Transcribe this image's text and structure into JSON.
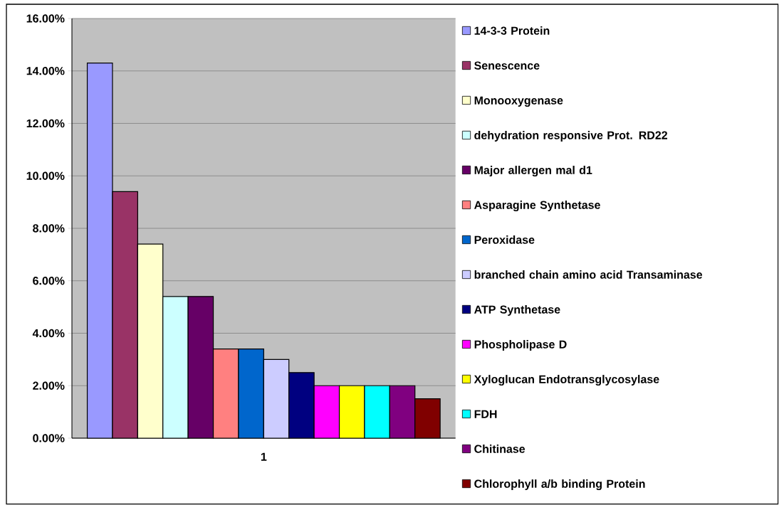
{
  "chart_data": {
    "type": "bar",
    "categories": [
      "1"
    ],
    "series": [
      {
        "name": "14-3-3 Protein",
        "color": "#9999ff",
        "values": [
          14.3
        ]
      },
      {
        "name": "Senescence",
        "color": "#993366",
        "values": [
          9.4
        ]
      },
      {
        "name": "Monooxygenase",
        "color": "#ffffcc",
        "values": [
          7.4
        ]
      },
      {
        "name": "dehydration responsive Prot. RD22",
        "color": "#ccffff",
        "values": [
          5.4
        ]
      },
      {
        "name": "Major allergen mal d1",
        "color": "#660066",
        "values": [
          5.4
        ]
      },
      {
        "name": "Asparagine Synthetase",
        "color": "#ff8080",
        "values": [
          3.4
        ]
      },
      {
        "name": "Peroxidase",
        "color": "#0066cc",
        "values": [
          3.4
        ]
      },
      {
        "name": "branched chain amino acid Transaminase",
        "color": "#ccccff",
        "values": [
          3.0
        ]
      },
      {
        "name": "ATP Synthetase",
        "color": "#000080",
        "values": [
          2.5
        ]
      },
      {
        "name": "Phospholipase D",
        "color": "#ff00ff",
        "values": [
          2.0
        ]
      },
      {
        "name": "Xyloglucan Endotransglycosylase",
        "color": "#ffff00",
        "values": [
          2.0
        ]
      },
      {
        "name": "FDH",
        "color": "#00ffff",
        "values": [
          2.0
        ]
      },
      {
        "name": "Chitinase",
        "color": "#800080",
        "values": [
          2.0
        ]
      },
      {
        "name": "Chlorophyll a/b binding Protein",
        "color": "#800000",
        "values": [
          1.5
        ]
      }
    ],
    "ylim": [
      0,
      16
    ],
    "yticks": [
      {
        "value": 0,
        "label": "0.00%"
      },
      {
        "value": 2,
        "label": "2.00%"
      },
      {
        "value": 4,
        "label": "4.00%"
      },
      {
        "value": 6,
        "label": "6.00%"
      },
      {
        "value": 8,
        "label": "8.00%"
      },
      {
        "value": 10,
        "label": "10.00%"
      },
      {
        "value": 12,
        "label": "12.00%"
      },
      {
        "value": 14,
        "label": "14.00%"
      },
      {
        "value": 16,
        "label": "16.00%"
      }
    ],
    "grid": "y",
    "legend": "right"
  }
}
